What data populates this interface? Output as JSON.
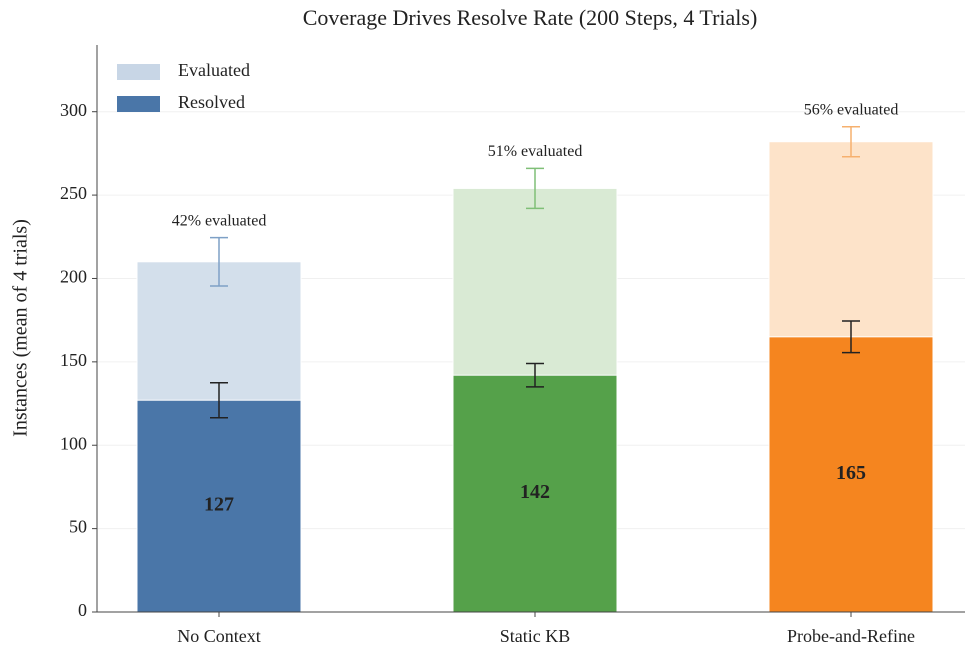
{
  "chart_data": {
    "type": "bar",
    "title": "Coverage Drives Resolve Rate (200 Steps, 4 Trials)",
    "ylabel": "Instances (mean of 4 trials)",
    "categories": [
      "No Context",
      "Static KB",
      "Probe-and-Refine"
    ],
    "series": [
      {
        "name": "Evaluated",
        "color": "#c8d6e6",
        "colors": [
          "#d3dfeb",
          "#d9ead4",
          "#fde3c9"
        ],
        "values": [
          210,
          254,
          282
        ],
        "errors": [
          14.5,
          12,
          9
        ],
        "error_colors": [
          "#7ea0c6",
          "#7fbf77",
          "#f6b06e"
        ]
      },
      {
        "name": "Resolved",
        "color": "#4a76a8",
        "colors": [
          "#4a76a8",
          "#55a14a",
          "#f5851f"
        ],
        "values": [
          127,
          142,
          165
        ],
        "errors": [
          10.5,
          7,
          9.5
        ],
        "error_colors": [
          "#222222",
          "#222222",
          "#222222"
        ]
      }
    ],
    "annotations": [
      "42% evaluated",
      "51% evaluated",
      "56% evaluated"
    ],
    "ylim": [
      0,
      340
    ],
    "yticks": [
      0,
      50,
      100,
      150,
      200,
      250,
      300
    ],
    "grid": true,
    "legend": "upper left"
  }
}
